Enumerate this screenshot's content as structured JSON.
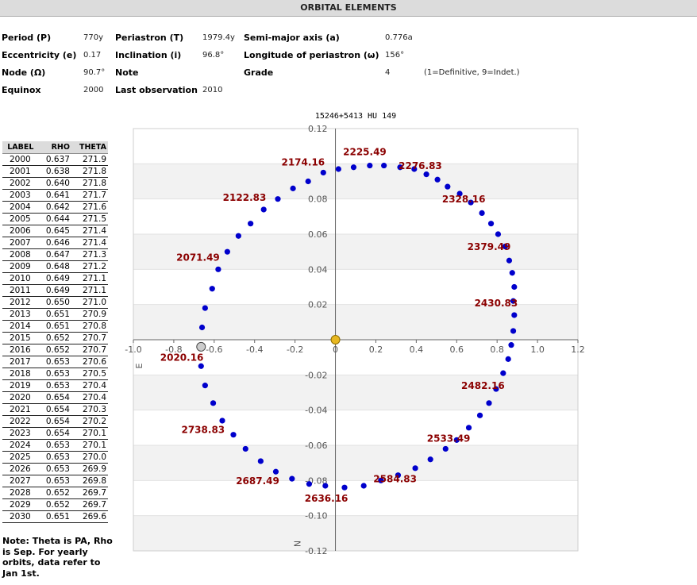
{
  "header": {
    "title": "ORBITAL ELEMENTS"
  },
  "elements": [
    [
      {
        "k": "Period (P)",
        "v": "770y"
      },
      {
        "k": "Periastron (T)",
        "v": "1979.4y"
      },
      {
        "k": "Semi-major axis (a)",
        "v": "0.776a"
      }
    ],
    [
      {
        "k": "Eccentricity (e)",
        "v": "0.17"
      },
      {
        "k": "Inclination (i)",
        "v": "96.8°"
      },
      {
        "k": "Longitude of periastron (ω)",
        "v": "156°"
      }
    ],
    [
      {
        "k": "Node (Ω)",
        "v": "90.7°"
      },
      {
        "k": "Note",
        "v": ""
      },
      {
        "k": "Grade",
        "v": "4"
      }
    ],
    [
      {
        "k": "Equinox",
        "v": "2000"
      },
      {
        "k": "Last observation",
        "v": "2010"
      },
      {
        "k": "",
        "v": ""
      }
    ]
  ],
  "grade_note": "(1=Definitive, 9=Indet.)",
  "ephemeris": {
    "headers": [
      "LABEL",
      "RHO",
      "THETA"
    ],
    "rows": [
      [
        "2000",
        "0.637",
        "271.9"
      ],
      [
        "2001",
        "0.638",
        "271.8"
      ],
      [
        "2002",
        "0.640",
        "271.8"
      ],
      [
        "2003",
        "0.641",
        "271.7"
      ],
      [
        "2004",
        "0.642",
        "271.6"
      ],
      [
        "2005",
        "0.644",
        "271.5"
      ],
      [
        "2006",
        "0.645",
        "271.4"
      ],
      [
        "2007",
        "0.646",
        "271.4"
      ],
      [
        "2008",
        "0.647",
        "271.3"
      ],
      [
        "2009",
        "0.648",
        "271.2"
      ],
      [
        "2010",
        "0.649",
        "271.1"
      ],
      [
        "2011",
        "0.649",
        "271.1"
      ],
      [
        "2012",
        "0.650",
        "271.0"
      ],
      [
        "2013",
        "0.651",
        "270.9"
      ],
      [
        "2014",
        "0.651",
        "270.8"
      ],
      [
        "2015",
        "0.652",
        "270.7"
      ],
      [
        "2016",
        "0.652",
        "270.7"
      ],
      [
        "2017",
        "0.653",
        "270.6"
      ],
      [
        "2018",
        "0.653",
        "270.5"
      ],
      [
        "2019",
        "0.653",
        "270.4"
      ],
      [
        "2020",
        "0.654",
        "270.4"
      ],
      [
        "2021",
        "0.654",
        "270.3"
      ],
      [
        "2022",
        "0.654",
        "270.2"
      ],
      [
        "2023",
        "0.654",
        "270.1"
      ],
      [
        "2024",
        "0.653",
        "270.1"
      ],
      [
        "2025",
        "0.653",
        "270.0"
      ],
      [
        "2026",
        "0.653",
        "269.9"
      ],
      [
        "2027",
        "0.653",
        "269.8"
      ],
      [
        "2028",
        "0.652",
        "269.7"
      ],
      [
        "2029",
        "0.652",
        "269.7"
      ],
      [
        "2030",
        "0.651",
        "269.6"
      ]
    ]
  },
  "note": "Note: Theta is PA, Rho is Sep. For yearly orbits, data refer to Jan 1st.",
  "chart_data": {
    "type": "scatter",
    "title": "15246+5413 HU  149",
    "xlim": [
      -1.0,
      1.2
    ],
    "ylim": [
      -0.12,
      0.12
    ],
    "x_ticks": [
      -1.0,
      -0.8,
      -0.6,
      -0.4,
      -0.2,
      0,
      0.2,
      0.4,
      0.6,
      0.8,
      1.0,
      1.2
    ],
    "x_tick_labels": [
      "-1.0",
      "-0.8",
      "-0.6",
      "-0.4",
      "-0.2",
      "0",
      "0.2",
      "0.4",
      "0.6",
      "0.8",
      "1.0",
      "1.2"
    ],
    "y_ticks": [
      0.12,
      0.1,
      0.08,
      0.06,
      0.04,
      0.02,
      0,
      -0.02,
      -0.04,
      -0.06,
      -0.08,
      -0.1,
      -0.12
    ],
    "y_tick_labels": [
      "0.12",
      "",
      "0.08",
      "0.06",
      "0.04",
      "0.02",
      "",
      "-0.02",
      "-0.04",
      "-0.06",
      "-0.08",
      "-0.10",
      "-0.12"
    ],
    "axis_marks": {
      "east": "E",
      "north": "N"
    },
    "grid_bands": true,
    "colors": {
      "points": "#0000cc",
      "labels": "#8b0000",
      "primary": "#e8b820",
      "current": "#cccccc"
    },
    "primary": {
      "x": 0,
      "y": 0
    },
    "current": {
      "x": -0.665,
      "y": -0.004
    },
    "points": [
      {
        "x": -0.665,
        "y": -0.015
      },
      {
        "x": -0.645,
        "y": -0.026
      },
      {
        "x": -0.605,
        "y": -0.036
      },
      {
        "x": -0.56,
        "y": -0.046
      },
      {
        "x": -0.505,
        "y": -0.054
      },
      {
        "x": -0.445,
        "y": -0.062
      },
      {
        "x": -0.37,
        "y": -0.069
      },
      {
        "x": -0.295,
        "y": -0.075
      },
      {
        "x": -0.215,
        "y": -0.079
      },
      {
        "x": -0.13,
        "y": -0.082
      },
      {
        "x": -0.05,
        "y": -0.083
      },
      {
        "x": 0.045,
        "y": -0.084
      },
      {
        "x": 0.14,
        "y": -0.083
      },
      {
        "x": 0.225,
        "y": -0.08
      },
      {
        "x": 0.31,
        "y": -0.077
      },
      {
        "x": 0.395,
        "y": -0.073
      },
      {
        "x": 0.47,
        "y": -0.068
      },
      {
        "x": 0.545,
        "y": -0.062
      },
      {
        "x": 0.6,
        "y": -0.057
      },
      {
        "x": 0.66,
        "y": -0.05
      },
      {
        "x": 0.715,
        "y": -0.043
      },
      {
        "x": 0.76,
        "y": -0.036
      },
      {
        "x": 0.795,
        "y": -0.028
      },
      {
        "x": 0.83,
        "y": -0.019
      },
      {
        "x": 0.855,
        "y": -0.011
      },
      {
        "x": 0.87,
        "y": -0.003
      },
      {
        "x": 0.88,
        "y": 0.005
      },
      {
        "x": 0.885,
        "y": 0.014
      },
      {
        "x": 0.88,
        "y": 0.022
      },
      {
        "x": 0.885,
        "y": 0.03
      },
      {
        "x": 0.875,
        "y": 0.038
      },
      {
        "x": 0.86,
        "y": 0.045
      },
      {
        "x": 0.84,
        "y": 0.053
      },
      {
        "x": 0.805,
        "y": 0.06
      },
      {
        "x": 0.77,
        "y": 0.066
      },
      {
        "x": 0.725,
        "y": 0.072
      },
      {
        "x": 0.67,
        "y": 0.078
      },
      {
        "x": 0.615,
        "y": 0.083
      },
      {
        "x": 0.555,
        "y": 0.087
      },
      {
        "x": 0.505,
        "y": 0.091
      },
      {
        "x": 0.45,
        "y": 0.094
      },
      {
        "x": 0.39,
        "y": 0.097
      },
      {
        "x": 0.32,
        "y": 0.098
      },
      {
        "x": 0.24,
        "y": 0.099
      },
      {
        "x": 0.17,
        "y": 0.099
      },
      {
        "x": 0.09,
        "y": 0.098
      },
      {
        "x": 0.015,
        "y": 0.097
      },
      {
        "x": -0.06,
        "y": 0.095
      },
      {
        "x": -0.135,
        "y": 0.09
      },
      {
        "x": -0.21,
        "y": 0.086
      },
      {
        "x": -0.285,
        "y": 0.08
      },
      {
        "x": -0.355,
        "y": 0.074
      },
      {
        "x": -0.42,
        "y": 0.066
      },
      {
        "x": -0.48,
        "y": 0.059
      },
      {
        "x": -0.535,
        "y": 0.05
      },
      {
        "x": -0.58,
        "y": 0.04
      },
      {
        "x": -0.61,
        "y": 0.029
      },
      {
        "x": -0.645,
        "y": 0.018
      },
      {
        "x": -0.66,
        "y": 0.007
      }
    ],
    "labels": [
      {
        "text": "2020.16",
        "x": -0.76,
        "y": -0.012
      },
      {
        "text": "2071.49",
        "x": -0.68,
        "y": 0.045
      },
      {
        "text": "2122.83",
        "x": -0.45,
        "y": 0.079
      },
      {
        "text": "2174.16",
        "x": -0.16,
        "y": 0.099
      },
      {
        "text": "2225.49",
        "x": 0.145,
        "y": 0.105
      },
      {
        "text": "2276.83",
        "x": 0.42,
        "y": 0.097
      },
      {
        "text": "2328.16",
        "x": 0.635,
        "y": 0.078
      },
      {
        "text": "2379.49",
        "x": 0.76,
        "y": 0.051
      },
      {
        "text": "2430.83",
        "x": 0.795,
        "y": 0.019
      },
      {
        "text": "2482.16",
        "x": 0.73,
        "y": -0.028
      },
      {
        "text": "2533.49",
        "x": 0.56,
        "y": -0.058
      },
      {
        "text": "2584.83",
        "x": 0.295,
        "y": -0.081
      },
      {
        "text": "2636.16",
        "x": -0.045,
        "y": -0.092
      },
      {
        "text": "2687.49",
        "x": -0.385,
        "y": -0.082
      },
      {
        "text": "2738.83",
        "x": -0.655,
        "y": -0.053
      }
    ]
  }
}
